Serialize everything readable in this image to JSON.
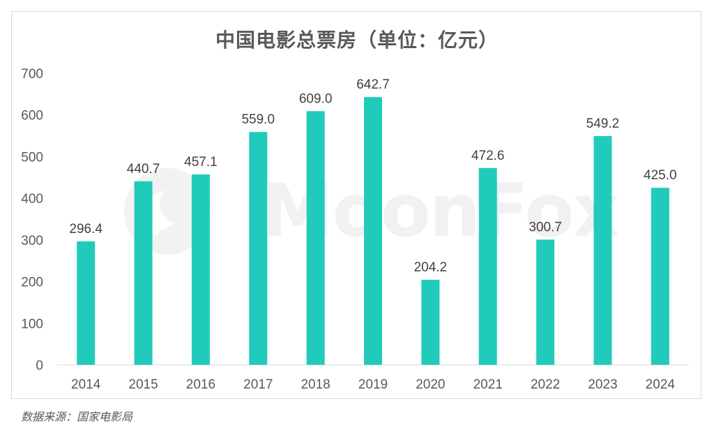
{
  "chart_data": {
    "type": "bar",
    "title": "中国电影总票房（单位：亿元）",
    "categories": [
      "2014",
      "2015",
      "2016",
      "2017",
      "2018",
      "2019",
      "2020",
      "2021",
      "2022",
      "2023",
      "2024"
    ],
    "values": [
      296.4,
      440.7,
      457.1,
      559.0,
      609.0,
      642.7,
      204.2,
      472.6,
      300.7,
      549.2,
      425.0
    ],
    "value_labels": [
      "296.4",
      "440.7",
      "457.1",
      "559.0",
      "609.0",
      "642.7",
      "204.2",
      "472.6",
      "300.7",
      "549.2",
      "425.0"
    ],
    "y_ticks": [
      "0",
      "100",
      "200",
      "300",
      "400",
      "500",
      "600",
      "700"
    ],
    "ylim": [
      0,
      700
    ],
    "xlabel": "",
    "ylabel": "",
    "grid": false,
    "bar_color": "#21cbbc"
  },
  "watermark": "MoonFox",
  "source": "数据来源：国家电影局"
}
